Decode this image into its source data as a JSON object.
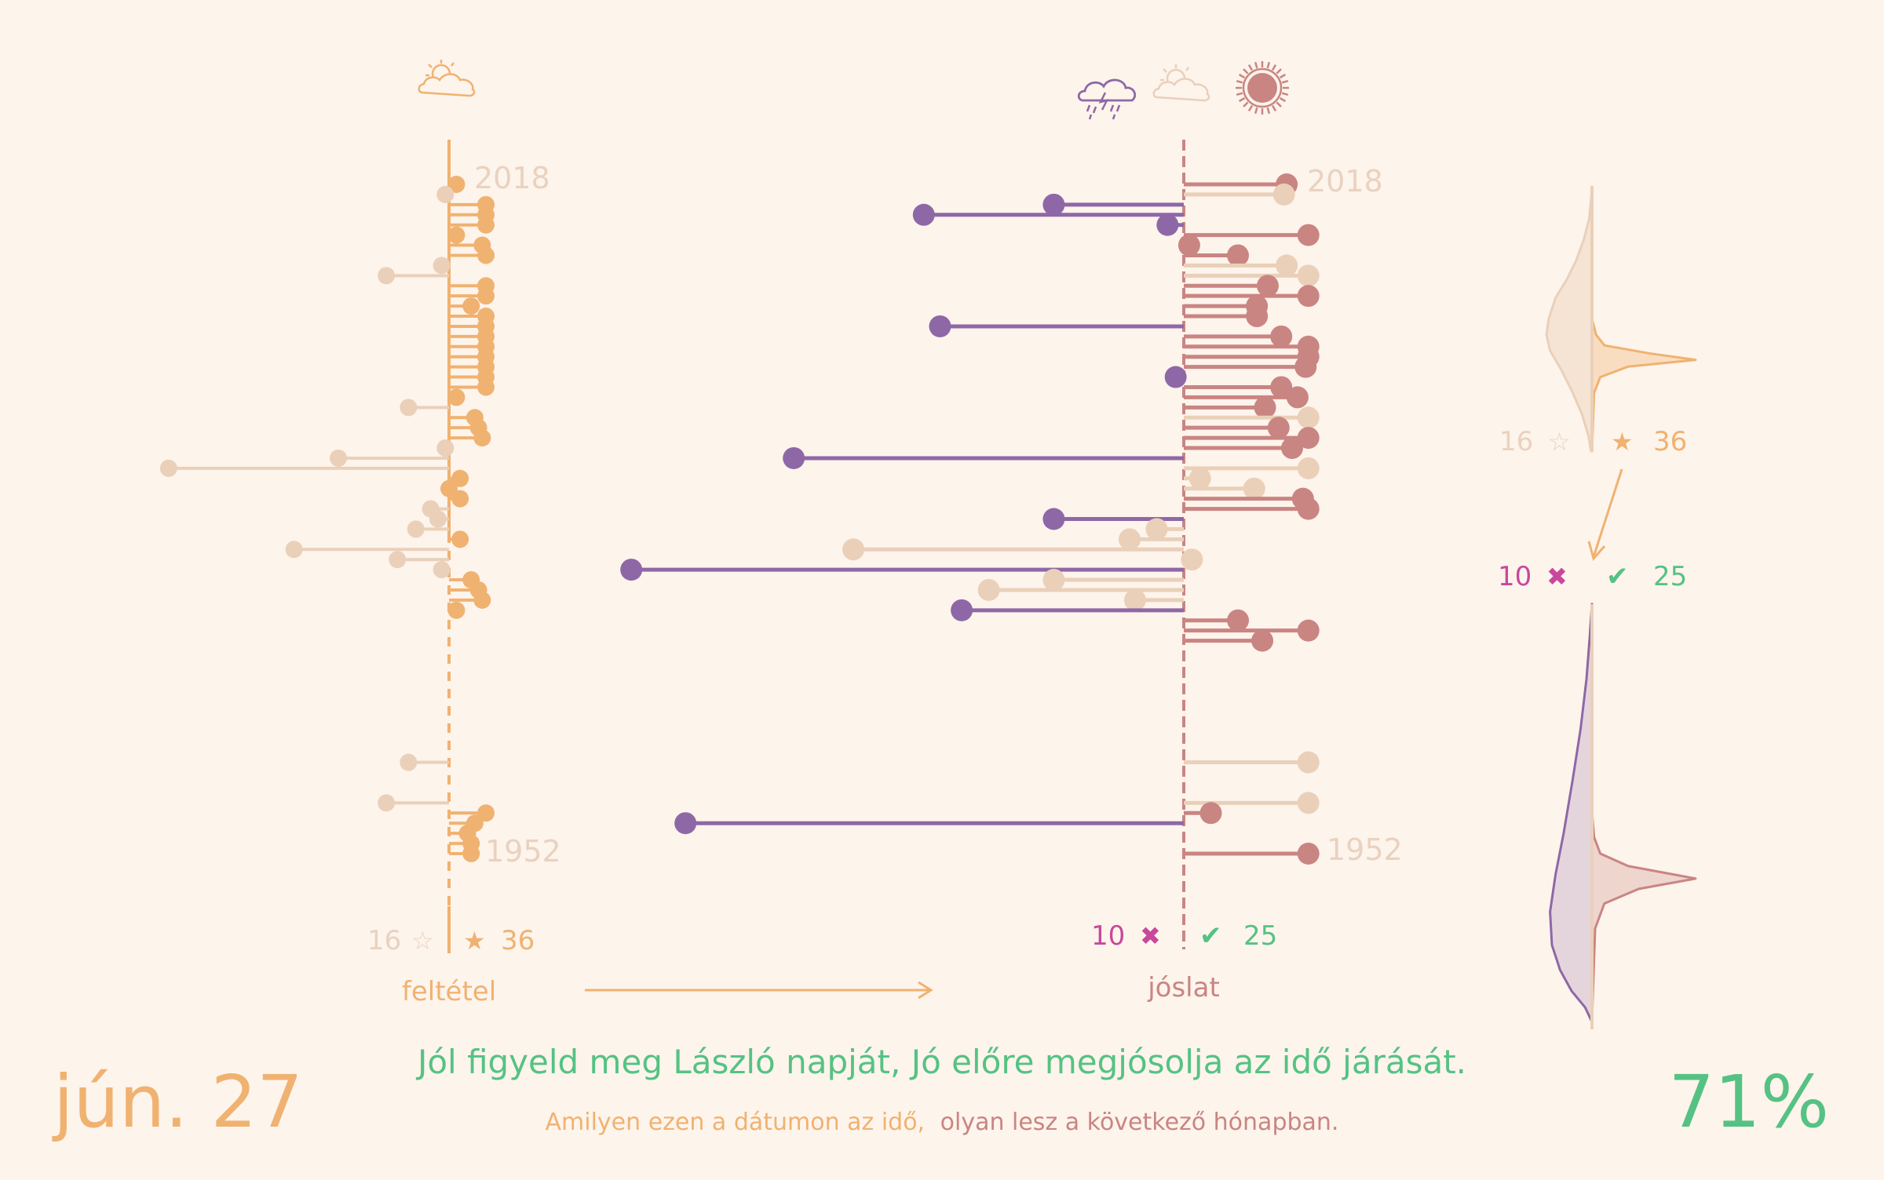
{
  "colors": {
    "background": "#fdf4ec",
    "condition_good": "#f0b271",
    "condition_bad": "#ead0b9",
    "pred_rain": "#8e68a6",
    "pred_cloud": "#ead0b9",
    "pred_sun": "#c98582",
    "year_label": "#e9d2bf",
    "cross": "#c8489b",
    "check": "#55c283",
    "title_green": "#55c283",
    "date_orange": "#f0b271"
  },
  "icons": {
    "condition": "partly-cloudy-icon",
    "prediction": [
      "rain-cloud-icon",
      "cloud-icon",
      "sun-icon"
    ]
  },
  "header": {
    "date": "jún. 27",
    "percent": "71%"
  },
  "saying": {
    "line1": "Jól figyeld meg László napját, Jó előre megjósolja az idő járását.",
    "line2_a": "Amilyen ezen a dátumon az idő,",
    "line2_b": "olyan lesz a következő hónapban."
  },
  "labels": {
    "condition": "feltétel",
    "prediction": "jóslat",
    "year_top": "2018",
    "year_bottom": "1952"
  },
  "counts": {
    "stars_empty": "16",
    "stars_full": "36",
    "wrong": "10",
    "right": "25"
  },
  "symbols": {
    "star_empty": "☆",
    "star_full": "★",
    "cross": "✖",
    "check": "✔"
  },
  "chart_data": [
    {
      "type": "lollipop",
      "name": "feltétel",
      "year_range": [
        1952,
        2018
      ],
      "value_range": [
        -4,
        1.5
      ],
      "stems": [
        {
          "year": 2018,
          "value": 0.1,
          "cat": "good"
        },
        {
          "year": 2017,
          "value": -0.05,
          "cat": "bad"
        },
        {
          "year": 2016,
          "value": 0.5,
          "cat": "good"
        },
        {
          "year": 2015,
          "value": 0.5,
          "cat": "good"
        },
        {
          "year": 2014,
          "value": 0.5,
          "cat": "good"
        },
        {
          "year": 2013,
          "value": 0.1,
          "cat": "good"
        },
        {
          "year": 2012,
          "value": 0.45,
          "cat": "good"
        },
        {
          "year": 2011,
          "value": 0.5,
          "cat": "good"
        },
        {
          "year": 2010,
          "value": -0.1,
          "cat": "bad"
        },
        {
          "year": 2009,
          "value": -0.85,
          "cat": "bad"
        },
        {
          "year": 2008,
          "value": 0.5,
          "cat": "good"
        },
        {
          "year": 2007,
          "value": 0.5,
          "cat": "good"
        },
        {
          "year": 2006,
          "value": 0.3,
          "cat": "good"
        },
        {
          "year": 2005,
          "value": 0.5,
          "cat": "good"
        },
        {
          "year": 2004,
          "value": 0.5,
          "cat": "good"
        },
        {
          "year": 2003,
          "value": 0.5,
          "cat": "good"
        },
        {
          "year": 2002,
          "value": 0.5,
          "cat": "good"
        },
        {
          "year": 2001,
          "value": 0.5,
          "cat": "good"
        },
        {
          "year": 2000,
          "value": 0.5,
          "cat": "good"
        },
        {
          "year": 1999,
          "value": 0.5,
          "cat": "good"
        },
        {
          "year": 1998,
          "value": 0.5,
          "cat": "good"
        },
        {
          "year": 1997,
          "value": 0.1,
          "cat": "good"
        },
        {
          "year": 1996,
          "value": -0.55,
          "cat": "bad"
        },
        {
          "year": 1995,
          "value": 0.35,
          "cat": "good"
        },
        {
          "year": 1994,
          "value": 0.4,
          "cat": "good"
        },
        {
          "year": 1993,
          "value": 0.45,
          "cat": "good"
        },
        {
          "year": 1992,
          "value": -0.05,
          "cat": "bad"
        },
        {
          "year": 1991,
          "value": -1.5,
          "cat": "bad"
        },
        {
          "year": 1990,
          "value": -3.8,
          "cat": "bad"
        },
        {
          "year": 1989,
          "value": 0.15,
          "cat": "good"
        },
        {
          "year": 1988,
          "value": 0.0,
          "cat": "good"
        },
        {
          "year": 1987,
          "value": 0.15,
          "cat": "good"
        },
        {
          "year": 1986,
          "value": -0.25,
          "cat": "bad"
        },
        {
          "year": 1985,
          "value": -0.15,
          "cat": "bad"
        },
        {
          "year": 1984,
          "value": -0.45,
          "cat": "bad"
        },
        {
          "year": 1983,
          "value": 0.15,
          "cat": "good"
        },
        {
          "year": 1982,
          "value": -2.1,
          "cat": "bad"
        },
        {
          "year": 1981,
          "value": -0.7,
          "cat": "bad"
        },
        {
          "year": 1980,
          "value": -0.1,
          "cat": "bad"
        },
        {
          "year": 1979,
          "value": 0.3,
          "cat": "good"
        },
        {
          "year": 1978,
          "value": 0.4,
          "cat": "good"
        },
        {
          "year": 1977,
          "value": 0.45,
          "cat": "good"
        },
        {
          "year": 1976,
          "value": 0.1,
          "cat": "good"
        },
        {
          "year": 1961,
          "value": -0.55,
          "cat": "bad"
        },
        {
          "year": 1957,
          "value": -0.85,
          "cat": "bad"
        },
        {
          "year": 1956,
          "value": 0.5,
          "cat": "good"
        },
        {
          "year": 1955,
          "value": 0.35,
          "cat": "good"
        },
        {
          "year": 1954,
          "value": 0.25,
          "cat": "good"
        },
        {
          "year": 1953,
          "value": 0.3,
          "cat": "good"
        },
        {
          "year": 1952,
          "value": 0.3,
          "cat": "good"
        }
      ]
    },
    {
      "type": "lollipop",
      "name": "jóslat",
      "year_range": [
        1952,
        2018
      ],
      "value_range": [
        -10,
        2.5
      ],
      "stems": [
        {
          "year": 2018,
          "value": 1.9,
          "cat": "sun"
        },
        {
          "year": 2017,
          "value": 1.85,
          "cat": "cloud"
        },
        {
          "year": 2016,
          "value": -2.4,
          "cat": "rain"
        },
        {
          "year": 2015,
          "value": -4.8,
          "cat": "rain"
        },
        {
          "year": 2014,
          "value": -0.3,
          "cat": "rain"
        },
        {
          "year": 2013,
          "value": 2.3,
          "cat": "sun"
        },
        {
          "year": 2012,
          "value": 0.1,
          "cat": "sun"
        },
        {
          "year": 2011,
          "value": 1.0,
          "cat": "sun"
        },
        {
          "year": 2010,
          "value": 1.9,
          "cat": "cloud"
        },
        {
          "year": 2009,
          "value": 2.3,
          "cat": "cloud"
        },
        {
          "year": 2008,
          "value": 1.55,
          "cat": "sun"
        },
        {
          "year": 2007,
          "value": 2.3,
          "cat": "sun"
        },
        {
          "year": 2006,
          "value": 1.35,
          "cat": "sun"
        },
        {
          "year": 2005,
          "value": 1.35,
          "cat": "sun"
        },
        {
          "year": 2004,
          "value": -4.5,
          "cat": "rain"
        },
        {
          "year": 2003,
          "value": 1.8,
          "cat": "sun"
        },
        {
          "year": 2002,
          "value": 2.3,
          "cat": "sun"
        },
        {
          "year": 2001,
          "value": 2.3,
          "cat": "sun"
        },
        {
          "year": 2000,
          "value": 2.25,
          "cat": "sun"
        },
        {
          "year": 1999,
          "value": -0.15,
          "cat": "rain"
        },
        {
          "year": 1998,
          "value": 1.8,
          "cat": "sun"
        },
        {
          "year": 1997,
          "value": 2.1,
          "cat": "sun"
        },
        {
          "year": 1996,
          "value": 1.5,
          "cat": "sun"
        },
        {
          "year": 1995,
          "value": 2.3,
          "cat": "cloud"
        },
        {
          "year": 1994,
          "value": 1.75,
          "cat": "sun"
        },
        {
          "year": 1993,
          "value": 2.3,
          "cat": "sun"
        },
        {
          "year": 1992,
          "value": 2.0,
          "cat": "sun"
        },
        {
          "year": 1991,
          "value": -7.2,
          "cat": "rain"
        },
        {
          "year": 1990,
          "value": 2.3,
          "cat": "cloud"
        },
        {
          "year": 1989,
          "value": 0.3,
          "cat": "cloud"
        },
        {
          "year": 1988,
          "value": 1.3,
          "cat": "cloud"
        },
        {
          "year": 1987,
          "value": 2.2,
          "cat": "sun"
        },
        {
          "year": 1986,
          "value": 2.3,
          "cat": "sun"
        },
        {
          "year": 1985,
          "value": -2.4,
          "cat": "rain"
        },
        {
          "year": 1984,
          "value": -0.5,
          "cat": "cloud"
        },
        {
          "year": 1983,
          "value": -1.0,
          "cat": "cloud"
        },
        {
          "year": 1982,
          "value": -6.1,
          "cat": "cloud"
        },
        {
          "year": 1981,
          "value": 0.15,
          "cat": "cloud"
        },
        {
          "year": 1980,
          "value": -10.2,
          "cat": "rain"
        },
        {
          "year": 1979,
          "value": -2.4,
          "cat": "cloud"
        },
        {
          "year": 1978,
          "value": -3.6,
          "cat": "cloud"
        },
        {
          "year": 1977,
          "value": -0.9,
          "cat": "cloud"
        },
        {
          "year": 1976,
          "value": -4.1,
          "cat": "rain"
        },
        {
          "year": 1975,
          "value": 1.0,
          "cat": "sun"
        },
        {
          "year": 1974,
          "value": 2.3,
          "cat": "sun"
        },
        {
          "year": 1973,
          "value": 1.45,
          "cat": "sun"
        },
        {
          "year": 1961,
          "value": 2.3,
          "cat": "cloud"
        },
        {
          "year": 1957,
          "value": 2.3,
          "cat": "cloud"
        },
        {
          "year": 1956,
          "value": 0.5,
          "cat": "sun"
        },
        {
          "year": 1955,
          "value": -9.2,
          "cat": "rain"
        },
        {
          "year": 1952,
          "value": 2.3,
          "cat": "sun"
        }
      ]
    }
  ],
  "density": {
    "condition": {
      "bad": [
        [
          0,
          0
        ],
        [
          0.05,
          0.02
        ],
        [
          0.12,
          0.06
        ],
        [
          0.2,
          0.18
        ],
        [
          0.28,
          0.35
        ],
        [
          0.35,
          0.55
        ],
        [
          0.42,
          0.8
        ],
        [
          0.5,
          0.95
        ],
        [
          0.56,
          1.0
        ],
        [
          0.62,
          0.92
        ],
        [
          0.7,
          0.65
        ],
        [
          0.78,
          0.42
        ],
        [
          0.86,
          0.22
        ],
        [
          0.94,
          0.08
        ],
        [
          1,
          0.02
        ]
      ],
      "good": [
        [
          0.5,
          0
        ],
        [
          0.56,
          0.04
        ],
        [
          0.6,
          0.12
        ],
        [
          0.63,
          0.55
        ],
        [
          0.655,
          1.0
        ],
        [
          0.68,
          0.35
        ],
        [
          0.72,
          0.08
        ],
        [
          0.78,
          0.02
        ],
        [
          1,
          0
        ]
      ]
    },
    "prediction": {
      "rain": [
        [
          0,
          0
        ],
        [
          0.08,
          0.05
        ],
        [
          0.18,
          0.12
        ],
        [
          0.3,
          0.25
        ],
        [
          0.42,
          0.42
        ],
        [
          0.55,
          0.62
        ],
        [
          0.65,
          0.8
        ],
        [
          0.74,
          0.92
        ],
        [
          0.82,
          0.88
        ],
        [
          0.88,
          0.7
        ],
        [
          0.93,
          0.45
        ],
        [
          0.97,
          0.15
        ],
        [
          1,
          0.02
        ]
      ],
      "sun": [
        [
          0.5,
          0
        ],
        [
          0.56,
          0.02
        ],
        [
          0.6,
          0.08
        ],
        [
          0.63,
          0.35
        ],
        [
          0.66,
          1.0
        ],
        [
          0.685,
          0.45
        ],
        [
          0.72,
          0.12
        ],
        [
          0.78,
          0.03
        ],
        [
          1,
          0
        ]
      ]
    }
  }
}
